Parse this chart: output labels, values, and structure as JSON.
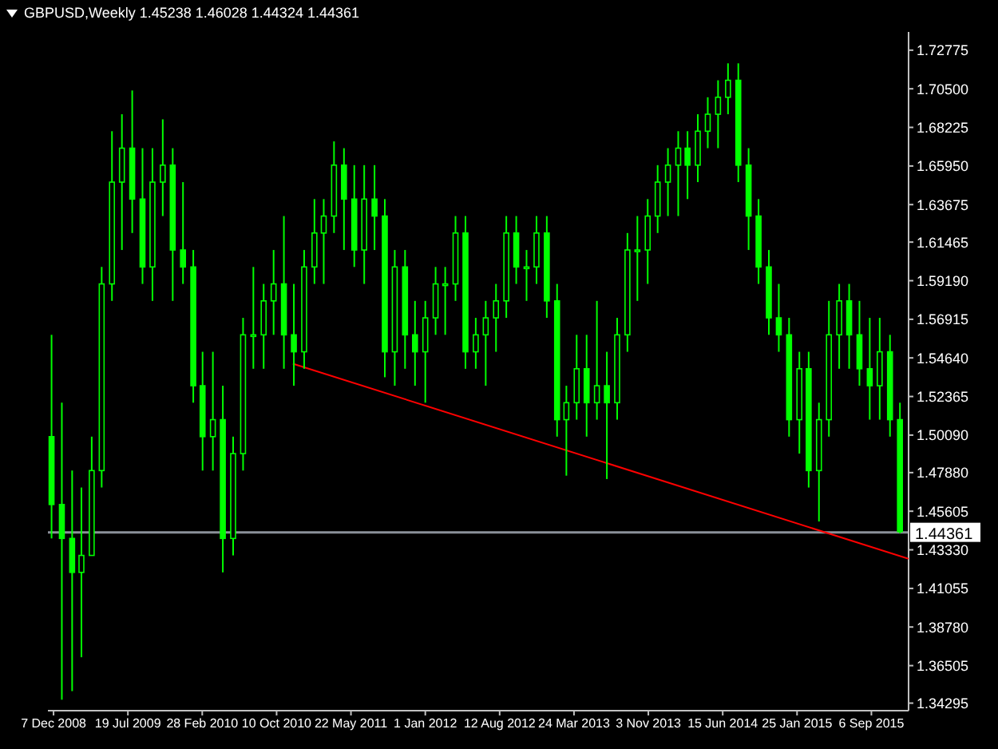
{
  "chart_data": {
    "type": "candlestick",
    "title": "GBPUSD,Weekly  1.45238 1.46028 1.44324 1.44361",
    "color": "#00ff00",
    "x": [
      "2008-12",
      "2009-01",
      "2009-02",
      "2009-03",
      "2009-04",
      "2009-05",
      "2009-06",
      "2009-07",
      "2009-08",
      "2009-09",
      "2009-10",
      "2009-11",
      "2009-12",
      "2010-01",
      "2010-02",
      "2010-03",
      "2010-04",
      "2010-05",
      "2010-06",
      "2010-07",
      "2010-08",
      "2010-09",
      "2010-10",
      "2010-11",
      "2010-12",
      "2011-01",
      "2011-02",
      "2011-03",
      "2011-04",
      "2011-05",
      "2011-06",
      "2011-07",
      "2011-08",
      "2011-09",
      "2011-10",
      "2011-11",
      "2011-12",
      "2012-01",
      "2012-02",
      "2012-03",
      "2012-04",
      "2012-05",
      "2012-06",
      "2012-07",
      "2012-08",
      "2012-09",
      "2012-10",
      "2012-11",
      "2012-12",
      "2013-01",
      "2013-02",
      "2013-03",
      "2013-04",
      "2013-05",
      "2013-06",
      "2013-07",
      "2013-08",
      "2013-09",
      "2013-10",
      "2013-11",
      "2013-12",
      "2014-01",
      "2014-02",
      "2014-03",
      "2014-04",
      "2014-05",
      "2014-06",
      "2014-07",
      "2014-08",
      "2014-09",
      "2014-10",
      "2014-11",
      "2014-12",
      "2015-01",
      "2015-02",
      "2015-03",
      "2015-04",
      "2015-05",
      "2015-06",
      "2015-07",
      "2015-08",
      "2015-09",
      "2015-10",
      "2015-11",
      "2015-12"
    ],
    "ohlc": [
      [
        1.5,
        1.56,
        1.44,
        1.46
      ],
      [
        1.46,
        1.52,
        1.345,
        1.44
      ],
      [
        1.44,
        1.48,
        1.35,
        1.42
      ],
      [
        1.42,
        1.47,
        1.37,
        1.43
      ],
      [
        1.43,
        1.5,
        1.43,
        1.48
      ],
      [
        1.48,
        1.6,
        1.47,
        1.59
      ],
      [
        1.59,
        1.68,
        1.58,
        1.65
      ],
      [
        1.65,
        1.69,
        1.61,
        1.67
      ],
      [
        1.67,
        1.704,
        1.62,
        1.64
      ],
      [
        1.64,
        1.67,
        1.59,
        1.6
      ],
      [
        1.6,
        1.67,
        1.58,
        1.65
      ],
      [
        1.65,
        1.687,
        1.63,
        1.66
      ],
      [
        1.66,
        1.67,
        1.58,
        1.61
      ],
      [
        1.61,
        1.65,
        1.59,
        1.6
      ],
      [
        1.6,
        1.61,
        1.52,
        1.53
      ],
      [
        1.53,
        1.55,
        1.48,
        1.5
      ],
      [
        1.5,
        1.55,
        1.48,
        1.51
      ],
      [
        1.51,
        1.53,
        1.42,
        1.44
      ],
      [
        1.44,
        1.5,
        1.43,
        1.49
      ],
      [
        1.49,
        1.57,
        1.48,
        1.56
      ],
      [
        1.56,
        1.6,
        1.54,
        1.56
      ],
      [
        1.56,
        1.59,
        1.54,
        1.58
      ],
      [
        1.58,
        1.61,
        1.56,
        1.59
      ],
      [
        1.59,
        1.63,
        1.54,
        1.56
      ],
      [
        1.56,
        1.59,
        1.53,
        1.55
      ],
      [
        1.55,
        1.61,
        1.54,
        1.6
      ],
      [
        1.6,
        1.64,
        1.59,
        1.62
      ],
      [
        1.62,
        1.64,
        1.59,
        1.63
      ],
      [
        1.63,
        1.674,
        1.62,
        1.66
      ],
      [
        1.66,
        1.67,
        1.61,
        1.64
      ],
      [
        1.64,
        1.66,
        1.6,
        1.61
      ],
      [
        1.61,
        1.66,
        1.59,
        1.64
      ],
      [
        1.64,
        1.66,
        1.61,
        1.63
      ],
      [
        1.63,
        1.64,
        1.535,
        1.55
      ],
      [
        1.55,
        1.61,
        1.53,
        1.6
      ],
      [
        1.6,
        1.61,
        1.54,
        1.56
      ],
      [
        1.56,
        1.58,
        1.53,
        1.55
      ],
      [
        1.55,
        1.58,
        1.52,
        1.57
      ],
      [
        1.57,
        1.6,
        1.56,
        1.59
      ],
      [
        1.59,
        1.6,
        1.56,
        1.59
      ],
      [
        1.59,
        1.63,
        1.58,
        1.62
      ],
      [
        1.62,
        1.63,
        1.54,
        1.55
      ],
      [
        1.55,
        1.57,
        1.54,
        1.56
      ],
      [
        1.56,
        1.58,
        1.53,
        1.57
      ],
      [
        1.57,
        1.59,
        1.55,
        1.58
      ],
      [
        1.58,
        1.63,
        1.57,
        1.62
      ],
      [
        1.62,
        1.63,
        1.59,
        1.6
      ],
      [
        1.6,
        1.61,
        1.58,
        1.6
      ],
      [
        1.6,
        1.63,
        1.59,
        1.62
      ],
      [
        1.62,
        1.63,
        1.57,
        1.58
      ],
      [
        1.58,
        1.59,
        1.5,
        1.51
      ],
      [
        1.51,
        1.53,
        1.477,
        1.52
      ],
      [
        1.52,
        1.56,
        1.51,
        1.54
      ],
      [
        1.54,
        1.56,
        1.5,
        1.52
      ],
      [
        1.52,
        1.58,
        1.51,
        1.53
      ],
      [
        1.53,
        1.55,
        1.475,
        1.52
      ],
      [
        1.52,
        1.57,
        1.51,
        1.56
      ],
      [
        1.56,
        1.62,
        1.55,
        1.61
      ],
      [
        1.61,
        1.63,
        1.58,
        1.61
      ],
      [
        1.61,
        1.64,
        1.59,
        1.63
      ],
      [
        1.63,
        1.66,
        1.62,
        1.65
      ],
      [
        1.65,
        1.67,
        1.63,
        1.66
      ],
      [
        1.66,
        1.68,
        1.63,
        1.67
      ],
      [
        1.67,
        1.68,
        1.64,
        1.66
      ],
      [
        1.66,
        1.69,
        1.65,
        1.68
      ],
      [
        1.68,
        1.7,
        1.67,
        1.69
      ],
      [
        1.69,
        1.71,
        1.67,
        1.7
      ],
      [
        1.7,
        1.72,
        1.69,
        1.71
      ],
      [
        1.71,
        1.72,
        1.65,
        1.66
      ],
      [
        1.66,
        1.67,
        1.61,
        1.63
      ],
      [
        1.63,
        1.64,
        1.59,
        1.6
      ],
      [
        1.6,
        1.61,
        1.56,
        1.57
      ],
      [
        1.57,
        1.59,
        1.55,
        1.56
      ],
      [
        1.56,
        1.57,
        1.5,
        1.51
      ],
      [
        1.51,
        1.55,
        1.49,
        1.54
      ],
      [
        1.54,
        1.55,
        1.47,
        1.48
      ],
      [
        1.48,
        1.52,
        1.45,
        1.51
      ],
      [
        1.51,
        1.58,
        1.5,
        1.56
      ],
      [
        1.56,
        1.59,
        1.54,
        1.58
      ],
      [
        1.58,
        1.59,
        1.54,
        1.56
      ],
      [
        1.56,
        1.58,
        1.53,
        1.54
      ],
      [
        1.54,
        1.57,
        1.51,
        1.53
      ],
      [
        1.53,
        1.57,
        1.51,
        1.55
      ],
      [
        1.55,
        1.56,
        1.5,
        1.51
      ],
      [
        1.51,
        1.52,
        1.443,
        1.444
      ]
    ],
    "series": [
      {
        "type": "line",
        "x": [
          "2010-11-28",
          "2015-12-27"
        ],
        "values": [
          1.543,
          1.428
        ],
        "color": "#ff0000"
      }
    ],
    "ref_lines": [
      {
        "axis": "y",
        "value": 1.44361,
        "label": "1.44361",
        "color": "#8a9099"
      }
    ],
    "xlim": [
      "2008-11-20",
      "2015-12-27"
    ],
    "xticks": [
      {
        "value": "2008-12-07",
        "label": "7 Dec 2008"
      },
      {
        "value": "2009-07-19",
        "label": "19 Jul 2009"
      },
      {
        "value": "2010-02-28",
        "label": "28 Feb 2010"
      },
      {
        "value": "2010-10-10",
        "label": "10 Oct 2010"
      },
      {
        "value": "2011-05-22",
        "label": "22 May 2011"
      },
      {
        "value": "2012-01-01",
        "label": "1 Jan 2012"
      },
      {
        "value": "2012-08-12",
        "label": "12 Aug 2012"
      },
      {
        "value": "2013-03-24",
        "label": "24 Mar 2013"
      },
      {
        "value": "2013-11-03",
        "label": "3 Nov 2013"
      },
      {
        "value": "2014-06-15",
        "label": "15 Jun 2014"
      },
      {
        "value": "2015-01-25",
        "label": "25 Jan 2015"
      },
      {
        "value": "2015-09-06",
        "label": "6 Sep 2015"
      }
    ],
    "ylim": [
      1.3385,
      1.7385
    ],
    "yticks": [
      {
        "value": 1.72775,
        "label": "1.72775"
      },
      {
        "value": 1.705,
        "label": "1.70500"
      },
      {
        "value": 1.68225,
        "label": "1.68225"
      },
      {
        "value": 1.6595,
        "label": "1.65950"
      },
      {
        "value": 1.63675,
        "label": "1.63675"
      },
      {
        "value": 1.61465,
        "label": "1.61465"
      },
      {
        "value": 1.5919,
        "label": "1.59190"
      },
      {
        "value": 1.56915,
        "label": "1.56915"
      },
      {
        "value": 1.5464,
        "label": "1.54640"
      },
      {
        "value": 1.52365,
        "label": "1.52365"
      },
      {
        "value": 1.5009,
        "label": "1.50090"
      },
      {
        "value": 1.4788,
        "label": "1.47880"
      },
      {
        "value": 1.45605,
        "label": "1.45605"
      },
      {
        "value": 1.4333,
        "label": "1.43330"
      },
      {
        "value": 1.41055,
        "label": "1.41055"
      },
      {
        "value": 1.3878,
        "label": "1.38780"
      },
      {
        "value": 1.36505,
        "label": "1.36505"
      },
      {
        "value": 1.34295,
        "label": "1.34295"
      }
    ]
  }
}
